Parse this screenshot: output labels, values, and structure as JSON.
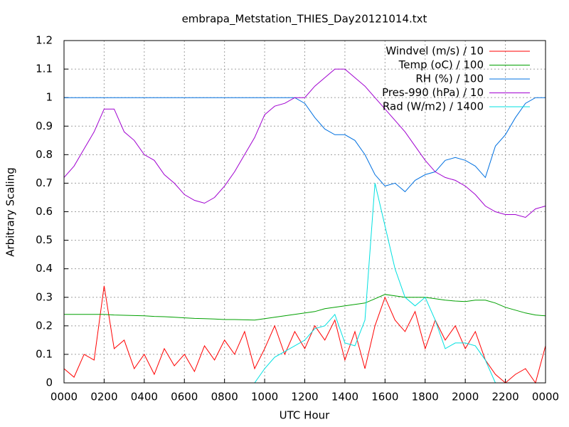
{
  "chart_data": {
    "type": "line",
    "title": "embrapa_Metstation_THIES_Day20121014.txt",
    "x_label": "UTC Hour",
    "y_label": "Arbitrary Scaling",
    "xlim": [
      0,
      24
    ],
    "ylim": [
      0,
      1.2
    ],
    "xticks": [
      {
        "value": 0,
        "label": "0000"
      },
      {
        "value": 2,
        "label": "0200"
      },
      {
        "value": 4,
        "label": "0400"
      },
      {
        "value": 6,
        "label": "0600"
      },
      {
        "value": 8,
        "label": "0800"
      },
      {
        "value": 10,
        "label": "1000"
      },
      {
        "value": 12,
        "label": "1200"
      },
      {
        "value": 14,
        "label": "1400"
      },
      {
        "value": 16,
        "label": "1600"
      },
      {
        "value": 18,
        "label": "1800"
      },
      {
        "value": 20,
        "label": "2000"
      },
      {
        "value": 22,
        "label": "2200"
      },
      {
        "value": 24,
        "label": "0000"
      }
    ],
    "yticks": [
      0,
      0.1,
      0.2,
      0.3,
      0.4,
      0.5,
      0.6,
      0.7,
      0.8,
      0.9,
      1,
      1.1,
      1.2
    ],
    "grid": true,
    "legend": "top-right",
    "x": [
      0,
      0.5,
      1,
      1.5,
      2,
      2.5,
      3,
      3.5,
      4,
      4.5,
      5,
      5.5,
      6,
      6.5,
      7,
      7.5,
      8,
      8.5,
      9,
      9.5,
      10,
      10.5,
      11,
      11.5,
      12,
      12.5,
      13,
      13.5,
      14,
      14.5,
      15,
      15.5,
      16,
      16.5,
      17,
      17.5,
      18,
      18.5,
      19,
      19.5,
      20,
      20.5,
      21,
      21.5,
      22,
      22.5,
      23,
      23.5,
      24
    ],
    "series": [
      {
        "name": "Windvel (m/s) / 10",
        "color": "#ff0000",
        "values": [
          0.05,
          0.02,
          0.1,
          0.08,
          0.34,
          0.12,
          0.15,
          0.05,
          0.1,
          0.03,
          0.12,
          0.06,
          0.1,
          0.04,
          0.13,
          0.08,
          0.15,
          0.1,
          0.18,
          0.05,
          0.12,
          0.2,
          0.1,
          0.18,
          0.12,
          0.2,
          0.15,
          0.22,
          0.08,
          0.18,
          0.05,
          0.2,
          0.3,
          0.22,
          0.18,
          0.25,
          0.12,
          0.22,
          0.15,
          0.2,
          0.12,
          0.18,
          0.08,
          0.03,
          0,
          0.03,
          0.05,
          0,
          0.13
        ]
      },
      {
        "name": "Temp (oC) / 100",
        "color": "#00a000",
        "values": [
          0.24,
          0.24,
          0.24,
          0.24,
          0.24,
          0.238,
          0.237,
          0.236,
          0.235,
          0.233,
          0.232,
          0.23,
          0.228,
          0.226,
          0.225,
          0.224,
          0.222,
          0.222,
          0.221,
          0.22,
          0.225,
          0.23,
          0.235,
          0.24,
          0.245,
          0.25,
          0.26,
          0.265,
          0.27,
          0.275,
          0.28,
          0.295,
          0.31,
          0.305,
          0.3,
          0.3,
          0.3,
          0.295,
          0.29,
          0.287,
          0.285,
          0.29,
          0.29,
          0.28,
          0.265,
          0.255,
          0.245,
          0.238,
          0.235
        ]
      },
      {
        "name": "RH (%) / 100",
        "color": "#0070e0",
        "values": [
          1,
          1,
          1,
          1,
          1,
          1,
          1,
          1,
          1,
          1,
          1,
          1,
          1,
          1,
          1,
          1,
          1,
          1,
          1,
          1,
          1,
          1,
          1,
          1,
          0.98,
          0.93,
          0.89,
          0.87,
          0.87,
          0.85,
          0.8,
          0.73,
          0.69,
          0.7,
          0.67,
          0.71,
          0.73,
          0.74,
          0.78,
          0.79,
          0.78,
          0.76,
          0.72,
          0.83,
          0.87,
          0.93,
          0.98,
          1,
          1
        ]
      },
      {
        "name": "Pres-990 (hPa) / 10",
        "color": "#a000d0",
        "values": [
          0.72,
          0.76,
          0.82,
          0.88,
          0.96,
          0.96,
          0.88,
          0.85,
          0.8,
          0.78,
          0.73,
          0.7,
          0.66,
          0.64,
          0.63,
          0.65,
          0.69,
          0.74,
          0.8,
          0.86,
          0.94,
          0.97,
          0.98,
          1,
          1,
          1.04,
          1.07,
          1.1,
          1.1,
          1.07,
          1.04,
          1,
          0.96,
          0.92,
          0.88,
          0.83,
          0.78,
          0.74,
          0.72,
          0.71,
          0.69,
          0.66,
          0.62,
          0.6,
          0.59,
          0.59,
          0.58,
          0.61,
          0.62
        ]
      },
      {
        "name": "Rad (W/m2) / 1400",
        "color": "#00e0e0",
        "values": [
          0,
          0,
          0,
          0,
          0,
          0,
          0,
          0,
          0,
          0,
          0,
          0,
          0,
          0,
          0,
          0,
          0,
          0,
          0,
          0,
          0.05,
          0.09,
          0.11,
          0.13,
          0.15,
          0.19,
          0.2,
          0.24,
          0.14,
          0.13,
          0.22,
          0.7,
          0.55,
          0.4,
          0.3,
          0.27,
          0.3,
          0.22,
          0.12,
          0.14,
          0.14,
          0.13,
          0.08,
          0,
          0,
          0,
          0,
          0,
          0
        ]
      }
    ]
  }
}
